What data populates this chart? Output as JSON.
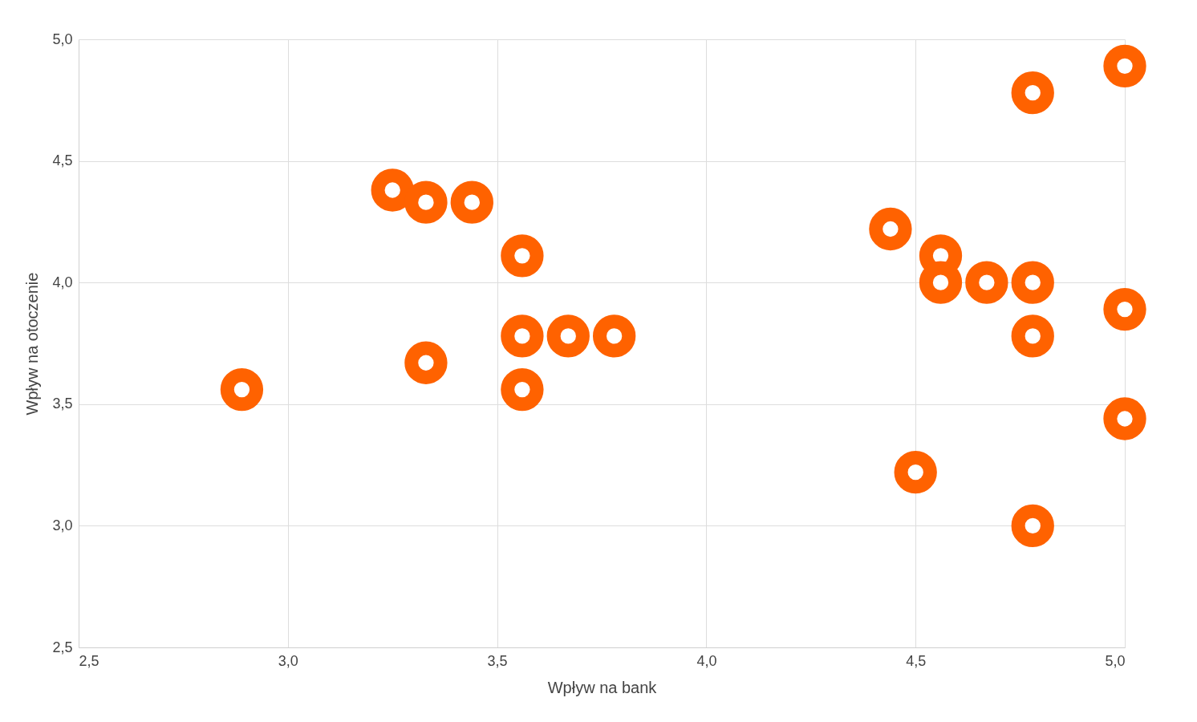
{
  "chart_data": {
    "type": "scatter",
    "xlabel": "Wpływ na bank",
    "ylabel": "Wpływ na otoczenie",
    "x": [
      2.89,
      3.25,
      3.33,
      3.44,
      3.56,
      3.33,
      3.56,
      3.67,
      3.78,
      3.56,
      4.44,
      4.56,
      4.56,
      4.67,
      4.78,
      4.78,
      5.0,
      5.0,
      4.78,
      5.0,
      4.5,
      4.78
    ],
    "series": [
      {
        "color": "#ff6200",
        "values": [
          3.56,
          4.38,
          4.33,
          4.33,
          4.11,
          3.67,
          3.78,
          3.78,
          3.78,
          3.56,
          4.22,
          4.11,
          4.0,
          4.0,
          4.0,
          4.78,
          4.89,
          3.89,
          3.78,
          3.44,
          3.22,
          3.0
        ]
      }
    ],
    "xlim": [
      2.5,
      5.0
    ],
    "ylim": [
      2.5,
      5.0
    ],
    "xticks": [
      {
        "value": 2.5,
        "label": "2,5"
      },
      {
        "value": 3.0,
        "label": "3,0"
      },
      {
        "value": 3.5,
        "label": "3,5"
      },
      {
        "value": 4.0,
        "label": "4,0"
      },
      {
        "value": 4.5,
        "label": "4,5"
      },
      {
        "value": 5.0,
        "label": "5,0"
      }
    ],
    "yticks": [
      {
        "value": 2.5,
        "label": "2,5"
      },
      {
        "value": 3.0,
        "label": "3,0"
      },
      {
        "value": 3.5,
        "label": "3,5"
      },
      {
        "value": 4.0,
        "label": "4,0"
      },
      {
        "value": 4.5,
        "label": "4,5"
      },
      {
        "value": 5.0,
        "label": "5,0"
      }
    ],
    "grid": true,
    "marker": "circle"
  }
}
